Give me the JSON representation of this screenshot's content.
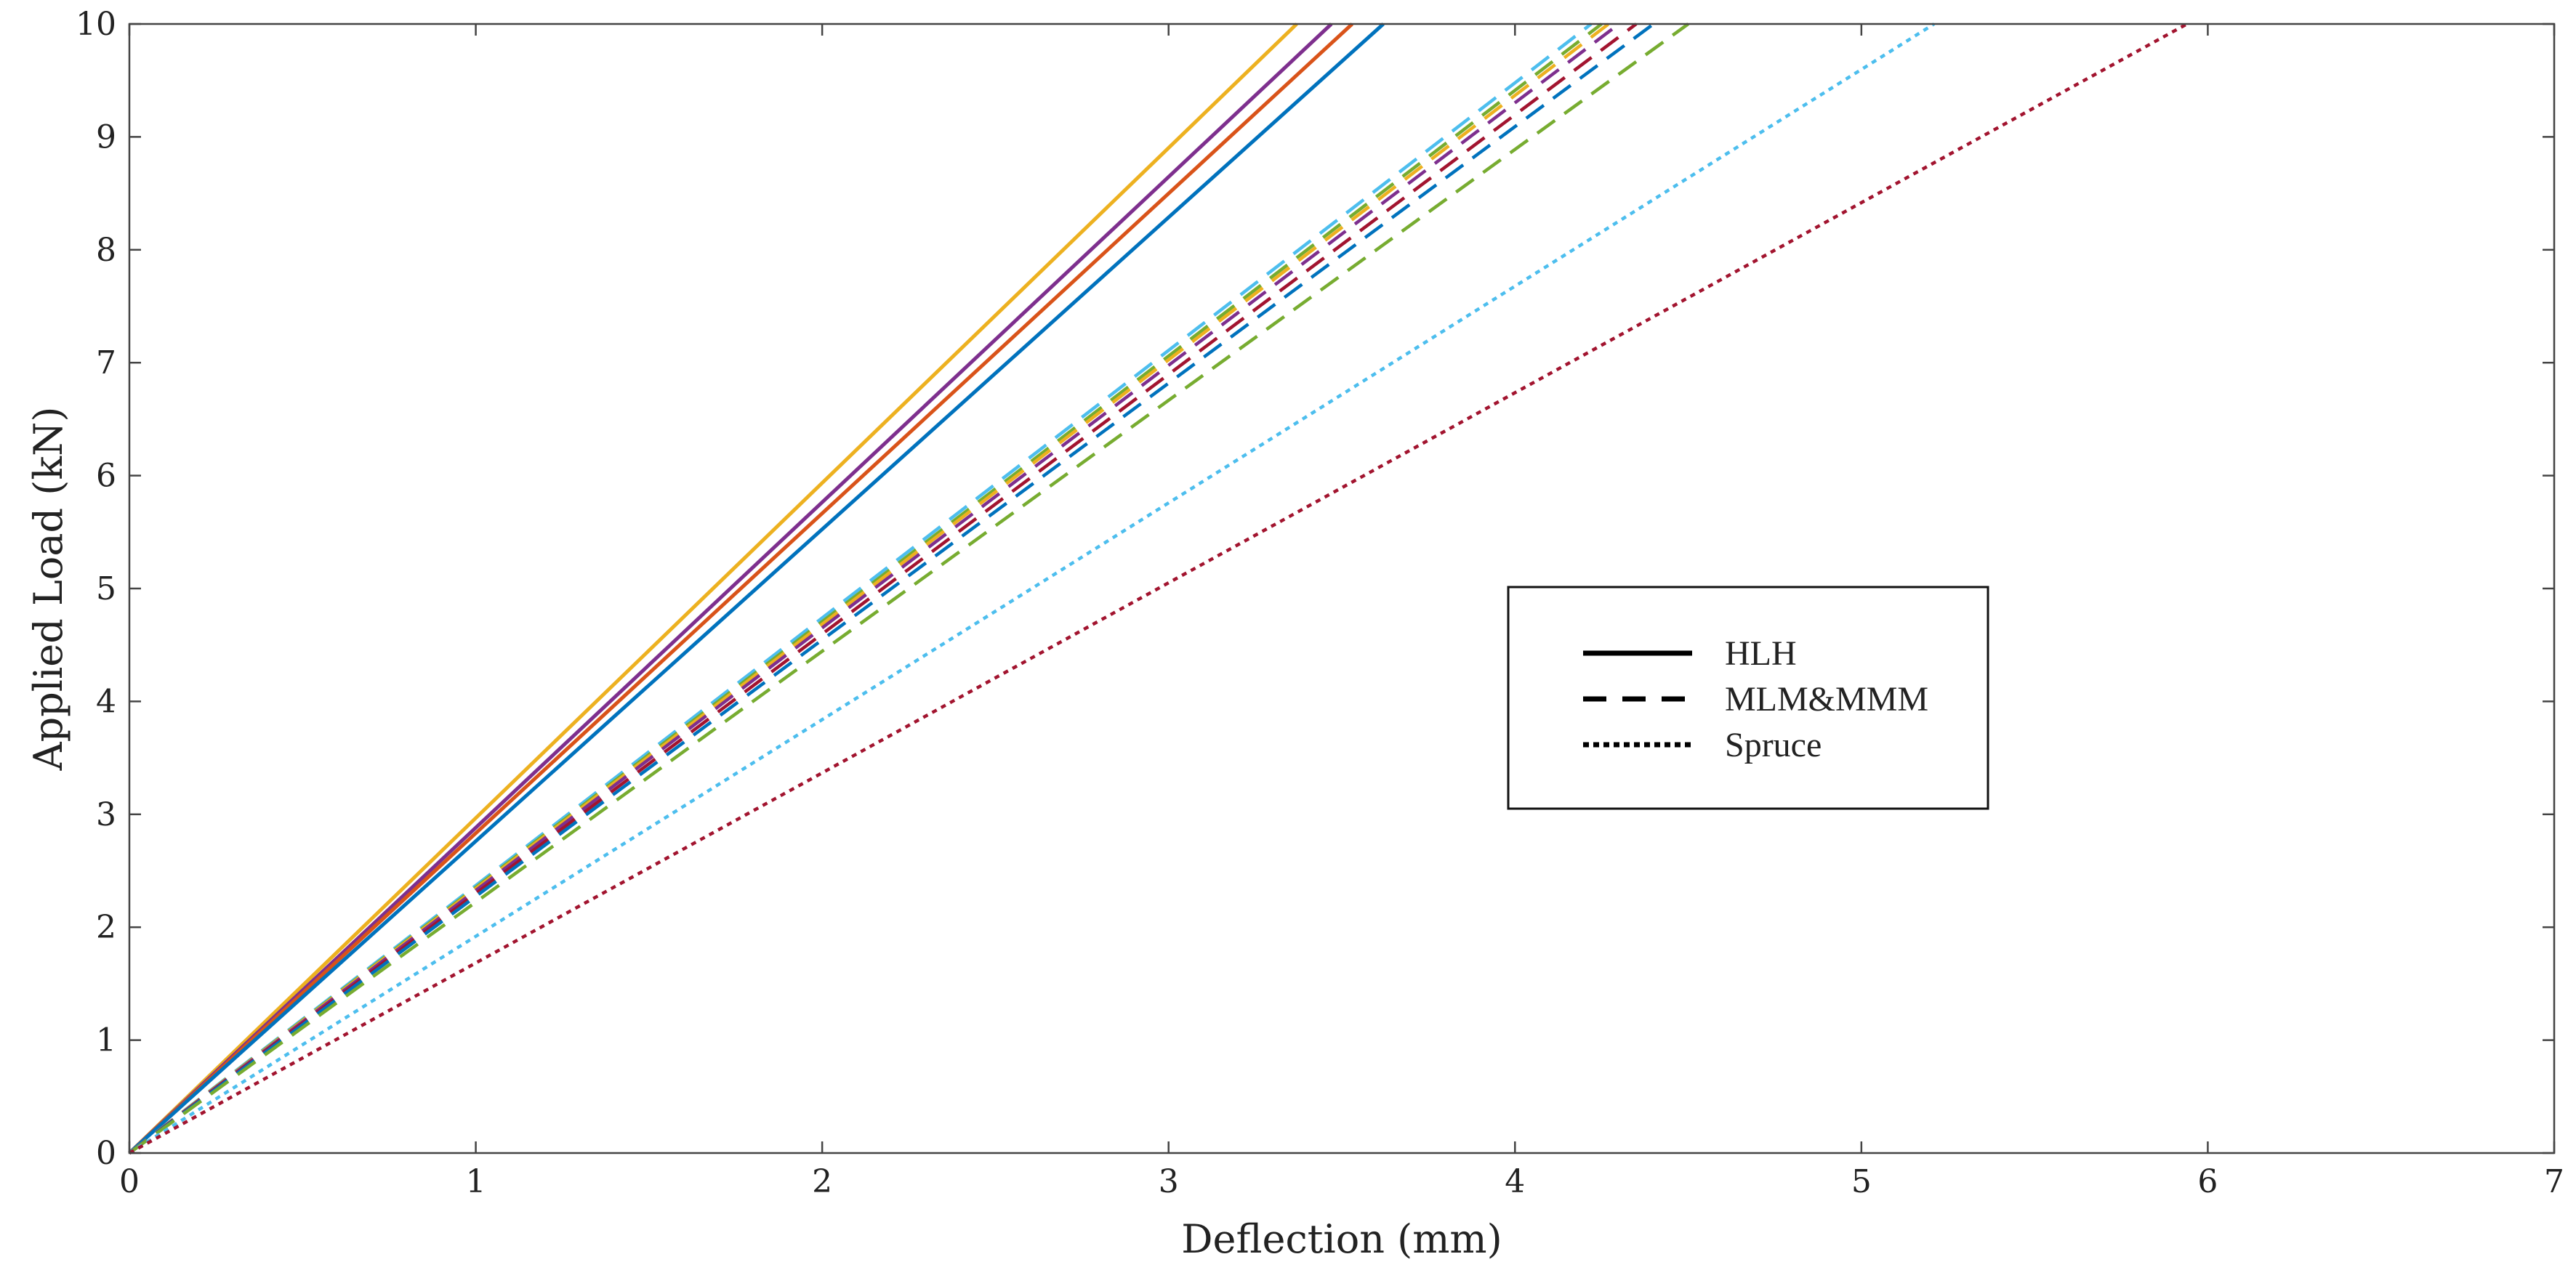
{
  "chart_data": {
    "type": "line",
    "title": "",
    "xlabel": "Deflection (mm)",
    "ylabel": "Applied Load (kN)",
    "xlim": [
      0,
      7
    ],
    "ylim": [
      0,
      10
    ],
    "xticks": [
      "0",
      "1",
      "2",
      "3",
      "4",
      "5",
      "6",
      "7"
    ],
    "yticks": [
      "0",
      "1",
      "2",
      "3",
      "4",
      "5",
      "6",
      "7",
      "8",
      "9",
      "10"
    ],
    "grid": false,
    "legend_position": "center-right",
    "legend": [
      {
        "label": "HLH",
        "style": "solid"
      },
      {
        "label": "MLM&MMM",
        "style": "dashed"
      },
      {
        "label": "Spruce",
        "style": "dotted"
      }
    ],
    "series": [
      {
        "group": "HLH",
        "style": "solid",
        "color": "#EDB120",
        "x": [
          0,
          3.37
        ],
        "y": [
          0,
          10
        ]
      },
      {
        "group": "HLH",
        "style": "solid",
        "color": "#7E2F8E",
        "x": [
          0,
          3.47
        ],
        "y": [
          0,
          10
        ]
      },
      {
        "group": "HLH",
        "style": "solid",
        "color": "#D95319",
        "x": [
          0,
          3.53
        ],
        "y": [
          0,
          10
        ]
      },
      {
        "group": "HLH",
        "style": "solid",
        "color": "#0072BD",
        "x": [
          0,
          3.62
        ],
        "y": [
          0,
          10
        ]
      },
      {
        "group": "MLM&MMM",
        "style": "dashed",
        "color": "#4DBEEE",
        "x": [
          0,
          4.22
        ],
        "y": [
          0,
          10
        ]
      },
      {
        "group": "MLM&MMM",
        "style": "dashed",
        "color": "#77AC30",
        "x": [
          0,
          4.25
        ],
        "y": [
          0,
          10
        ]
      },
      {
        "group": "MLM&MMM",
        "style": "dashed",
        "color": "#EDB120",
        "x": [
          0,
          4.27
        ],
        "y": [
          0,
          10
        ]
      },
      {
        "group": "MLM&MMM",
        "style": "dashed",
        "color": "#7E2F8E",
        "x": [
          0,
          4.3
        ],
        "y": [
          0,
          10
        ]
      },
      {
        "group": "MLM&MMM",
        "style": "dashed",
        "color": "#A2142F",
        "x": [
          0,
          4.35
        ],
        "y": [
          0,
          10
        ]
      },
      {
        "group": "MLM&MMM",
        "style": "dashed",
        "color": "#0072BD",
        "x": [
          0,
          4.4
        ],
        "y": [
          0,
          10
        ]
      },
      {
        "group": "MLM&MMM",
        "style": "dashed",
        "color": "#77AC30",
        "x": [
          0,
          4.5
        ],
        "y": [
          0,
          10
        ]
      },
      {
        "group": "Spruce",
        "style": "dotted",
        "color": "#4DBEEE",
        "x": [
          0,
          5.21
        ],
        "y": [
          0,
          10
        ]
      },
      {
        "group": "Spruce",
        "style": "dotted",
        "color": "#A2142F",
        "x": [
          0,
          5.94
        ],
        "y": [
          0,
          10
        ]
      }
    ]
  }
}
